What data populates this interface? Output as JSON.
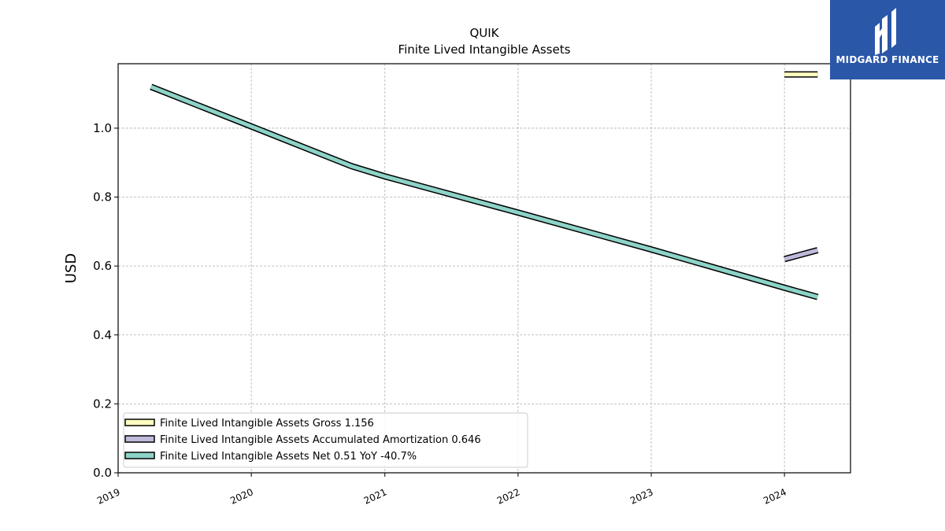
{
  "logo": {
    "text": "MIDGARD FINANCE"
  },
  "chart_data": {
    "type": "line",
    "title": "QUIK",
    "subtitle": "Finite Lived Intangible Assets",
    "xlabel": "",
    "ylabel": "USD",
    "xlim": [
      "2019-01-01",
      "2024-06-30"
    ],
    "ylim": [
      0,
      1.187
    ],
    "x_ticks": [
      "2019",
      "2020",
      "2021",
      "2022",
      "2023",
      "2024"
    ],
    "y_ticks": [
      "0.0",
      "0.2",
      "0.4",
      "0.6",
      "0.8",
      "1.0"
    ],
    "grid": true,
    "legend_position": "lower-left",
    "series": [
      {
        "name": "Finite Lived Intangible Assets Gross",
        "legend_label": "Finite Lived Intangible Assets Gross  1.156",
        "color": "#ffffbf",
        "x": [
          "2024-01-01",
          "2024-04-01"
        ],
        "y": [
          1.156,
          1.156
        ]
      },
      {
        "name": "Finite Lived Intangible Assets Accumulated Amortization",
        "legend_label": "Finite Lived Intangible Assets Accumulated Amortization  0.646",
        "color": "#bebada",
        "x": [
          "2024-01-01",
          "2024-04-01"
        ],
        "y": [
          0.62,
          0.646
        ]
      },
      {
        "name": "Finite Lived Intangible Assets Net",
        "legend_label": "Finite Lived Intangible Assets Net  0.51 YoY -40.7%",
        "color": "#8dd3c7",
        "x": [
          "2019-04-01",
          "2020-01-01",
          "2020-10-01",
          "2021-01-01",
          "2022-01-01",
          "2023-01-01",
          "2024-01-01",
          "2024-04-01"
        ],
        "y": [
          1.12,
          1.005,
          0.89,
          0.86,
          0.755,
          0.648,
          0.537,
          0.51
        ]
      }
    ]
  }
}
